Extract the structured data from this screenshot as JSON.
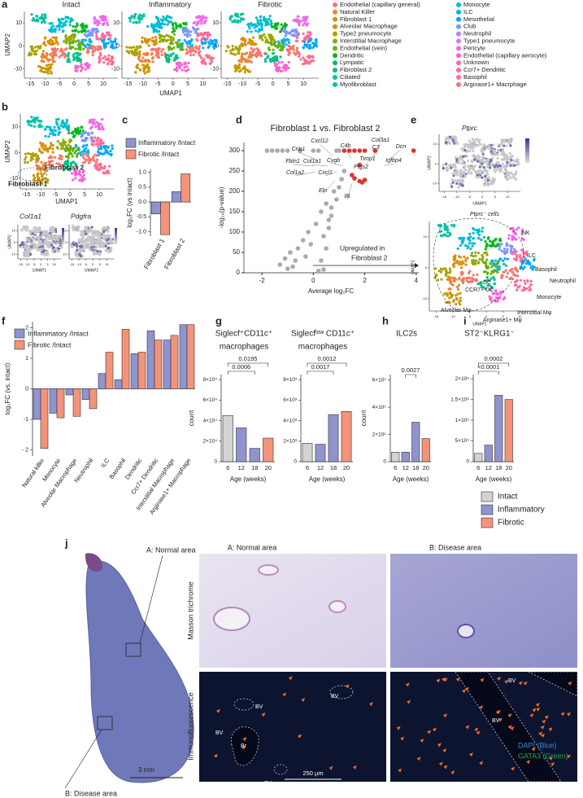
{
  "panel_labels": [
    "a",
    "b",
    "c",
    "d",
    "e",
    "f",
    "g",
    "h",
    "i",
    "j"
  ],
  "umap_a": {
    "titles": [
      "Intact",
      "Inflammatory",
      "Fibrotic"
    ],
    "xlabel": "UMAP1",
    "ylabel": "UMAP2",
    "xlim": [
      -17,
      15
    ],
    "ylim": [
      -14,
      15
    ],
    "xticks": [
      -15,
      -10,
      -5,
      0,
      5,
      10
    ],
    "yticks": [
      10,
      0,
      -10
    ],
    "legend": [
      {
        "name": "Endothelial (capillary general)",
        "color": "#F8766D"
      },
      {
        "name": "Natural Killer",
        "color": "#EC8239"
      },
      {
        "name": "Fibroblast 1",
        "color": "#DB8E00"
      },
      {
        "name": "Alveolar Macrophage",
        "color": "#C79800"
      },
      {
        "name": "Type2 pneumocyte",
        "color": "#AEA200"
      },
      {
        "name": "Interstitial Macrophage",
        "color": "#8FAA00"
      },
      {
        "name": "Endothelial (vein)",
        "color": "#64B200"
      },
      {
        "name": "Dendritic",
        "color": "#00B81B"
      },
      {
        "name": "Lympatic",
        "color": "#00BD5C"
      },
      {
        "name": "Fibroblast 2",
        "color": "#00C085"
      },
      {
        "name": "Ciliated",
        "color": "#00C1A7"
      },
      {
        "name": "Myofibroblast",
        "color": "#00BFC4"
      },
      {
        "name": "Monocyte",
        "color": "#00BADE"
      },
      {
        "name": "ILC",
        "color": "#00B2F3"
      },
      {
        "name": "Mesothelial",
        "color": "#00A6FF"
      },
      {
        "name": "Club",
        "color": "#7C96FF"
      },
      {
        "name": "Neutrophil",
        "color": "#B385FF"
      },
      {
        "name": "Type1 pneumocyte",
        "color": "#D874FD"
      },
      {
        "name": "Pericyte",
        "color": "#EF67EB"
      },
      {
        "name": "Endothelial (capillary aerocyte)",
        "color": "#FD61D3"
      },
      {
        "name": "Unknown",
        "color": "#FF62BC"
      },
      {
        "name": "Ccr7+ Dendritic",
        "color": "#FF6A9A"
      },
      {
        "name": "Basophil",
        "color": "#FF6C91"
      },
      {
        "name": "Arginase1+ Macrphage",
        "color": "#FC717F"
      }
    ]
  },
  "umap_b": {
    "xlabel": "UMAP1",
    "ylabel": "UMAP2",
    "xlim": [
      -17,
      15
    ],
    "ylim": [
      -14,
      15
    ],
    "xticks": [
      -15,
      -10,
      -5,
      0,
      5,
      10
    ],
    "yticks": [
      10,
      0,
      -10
    ],
    "labels": [
      "Fibroblast 2",
      "Fibroblast 1"
    ],
    "features": [
      "Col1a1",
      "Pdgfra"
    ]
  },
  "chart_c": {
    "type": "bar",
    "ylabel": "log₂FC (vs intact)",
    "categories": [
      "Fibroblast 1",
      "Fibroblast 2"
    ],
    "series": [
      {
        "name": "Inflammatory /Intact",
        "color": "#8f94cf",
        "values": [
          -0.4,
          0.35
        ]
      },
      {
        "name": "Fibrotic /Intact",
        "color": "#f4937a",
        "values": [
          -1.1,
          0.95
        ]
      }
    ],
    "ylim": [
      -1.15,
      1.1
    ],
    "yticks": [
      {
        "value": 1,
        "label": "1.0"
      },
      {
        "value": 0.5,
        "label": "0.5"
      },
      {
        "value": 0,
        "label": "0.0"
      },
      {
        "value": -0.5,
        "label": "-0.5"
      },
      {
        "value": -1,
        "label": "-1.0"
      }
    ]
  },
  "volcano_d": {
    "type": "scatter",
    "title": "Fibroblast 1 vs. Fibroblast 2",
    "xlabel": "Average log₂FC",
    "ylabel": "-log₁₀(p-value)",
    "xlim": [
      -2.7,
      4.1
    ],
    "ylim": [
      0,
      320
    ],
    "xticks": [
      -2,
      0,
      2,
      4
    ],
    "yticks": [
      0,
      50,
      100,
      150,
      200,
      250,
      300
    ],
    "x": [
      -1.8,
      -1.6,
      -1.4,
      -1.2,
      -1.0,
      -0.5,
      0.0,
      0.2,
      0.9,
      1.0,
      -1.3,
      -1.1,
      -0.9,
      -0.7,
      -0.6,
      -0.4,
      -0.3,
      -0.2,
      -0.1,
      0.1,
      0.3,
      0.4,
      0.5,
      0.6,
      0.7,
      0.8,
      0.9,
      1.0,
      1.1,
      1.2,
      0.5,
      0.6,
      0.7,
      0.3,
      -0.8,
      -1.0,
      0.2,
      0.4
    ],
    "y": [
      300,
      300,
      300,
      300,
      300,
      300,
      300,
      300,
      300,
      300,
      20,
      35,
      50,
      30,
      60,
      80,
      40,
      100,
      70,
      120,
      150,
      90,
      170,
      130,
      160,
      200,
      180,
      210,
      230,
      250,
      60,
      110,
      140,
      30,
      15,
      10,
      5,
      8
    ],
    "color": "#aaaaaa",
    "highlight": {
      "x": [
        1.2,
        1.4,
        1.6,
        1.8,
        2.0,
        2.4,
        3.9,
        1.8,
        1.5,
        1.6,
        1.8,
        2.0,
        1.9
      ],
      "y": [
        300,
        300,
        300,
        300,
        300,
        300,
        300,
        265,
        240,
        232,
        225,
        228,
        222
      ],
      "color": "#e8302a"
    },
    "genes": [
      "Cxcl12",
      "C4b",
      "Col3a1",
      "C3",
      "Dcn",
      "Crip1",
      "Cygb",
      "Timp1",
      "Igfbp4",
      "Fbln1",
      "Col1a1",
      "Ptgs2",
      "Col1a2",
      "Cxcl1",
      "Eln",
      "Il6"
    ],
    "annotation": [
      "Upregulated in",
      "Fibroblast 2"
    ]
  },
  "umap_e": {
    "feature": "Ptprc",
    "subtitle": "Ptprc⁻ cells",
    "xlabel": "UMAP1",
    "ylabel": "UMAP2",
    "xlim": [
      -17,
      15
    ],
    "ylim": [
      -14,
      15
    ],
    "xticks": [
      -15,
      -10,
      -5,
      0,
      5,
      10
    ],
    "yticks": [
      10,
      0,
      -10
    ],
    "labels": [
      "NK",
      "ILC",
      "Basophil",
      "Neutrophil",
      "DC",
      "CCR7+ DC",
      "Monocyte",
      "Alveolar Mφ",
      "Interstitial Mφ",
      "Arginase1+ Mφ"
    ]
  },
  "chart_f": {
    "type": "bar",
    "ylabel": "log₂FC (vs. intact)",
    "categories": [
      "Natural killer",
      "Monocyte",
      "Alveolar Macrophage",
      "Neutrophil",
      "ILC",
      "Basophil",
      "Dendritic",
      "Ccr7+ Dendritic",
      "Interstitial Macrophage",
      "Arginase1+ Macrophage"
    ],
    "series": [
      {
        "name": "Inflammatory /Intact",
        "color": "#8f94cf",
        "values": [
          -1.0,
          -0.8,
          -0.2,
          -0.35,
          0.5,
          0.3,
          1.15,
          1.9,
          1.6,
          2.1
        ]
      },
      {
        "name": "Fibrotic /Intact",
        "color": "#f4937a",
        "values": [
          -1.95,
          -0.95,
          -0.9,
          -0.65,
          1.2,
          1.95,
          1.2,
          1.6,
          1.75,
          2.1
        ]
      }
    ],
    "ylim": [
      -2.2,
      2.2
    ],
    "yticks": [
      2,
      1,
      0,
      -1,
      {
        "value": -2,
        "label": "- 2"
      }
    ]
  },
  "chart_g1": {
    "type": "bar",
    "title": [
      "Siglecf⁺CD11c⁺",
      "macrophages"
    ],
    "ylabel": "count",
    "xlabel": "Age (weeks)",
    "categories": [
      "6",
      "12",
      "18",
      "20"
    ],
    "values": [
      45000,
      33000,
      13000,
      23000
    ],
    "colors": [
      "#d3d3d3",
      "#8f94cf",
      "#8f94cf",
      "#f4937a"
    ],
    "ylim": [
      0,
      85000
    ],
    "yticks": [
      0,
      {
        "value": 20000,
        "label": "2×10⁴"
      },
      {
        "value": 40000,
        "label": "4×10⁴"
      },
      {
        "value": 60000,
        "label": "6×10⁴"
      },
      {
        "value": 80000,
        "label": "8×10⁴"
      }
    ],
    "comparisons": [
      {
        "groups": [
          "6",
          "18"
        ],
        "label": "0.0006"
      },
      {
        "groups": [
          "6",
          "20"
        ],
        "label": "0.0195"
      }
    ]
  },
  "chart_g2": {
    "type": "bar",
    "title": [
      "Siglecfˡᵒʷ CD11c⁺",
      "macrophages"
    ],
    "xlabel": "Age (weeks)",
    "categories": [
      "6",
      "12",
      "18",
      "20"
    ],
    "values": [
      1800,
      1700,
      4600,
      4900
    ],
    "colors": [
      "#d3d3d3",
      "#8f94cf",
      "#8f94cf",
      "#f4937a"
    ],
    "ylim": [
      0,
      8500
    ],
    "yticks": [
      0,
      {
        "value": 2000,
        "label": "2×10³"
      },
      {
        "value": 4000,
        "label": "4×10³"
      },
      {
        "value": 6000,
        "label": "6×10³"
      },
      {
        "value": 8000,
        "label": "8×10³"
      }
    ],
    "comparisons": [
      {
        "groups": [
          "6",
          "18"
        ],
        "label": "0.0017"
      },
      {
        "groups": [
          "6",
          "20"
        ],
        "label": "0.0012"
      }
    ]
  },
  "chart_h": {
    "type": "bar",
    "title": [
      "ILC2s"
    ],
    "ylabel": "count",
    "xlabel": "Age (weeks)",
    "categories": [
      "6",
      "12",
      "18",
      "20"
    ],
    "values": [
      70000,
      70000,
      290000,
      170000
    ],
    "colors": [
      "#d3d3d3",
      "#8f94cf",
      "#8f94cf",
      "#f4937a"
    ],
    "ylim": [
      0,
      640000
    ],
    "yticks": [
      0,
      {
        "value": 200000,
        "label": "2×10⁵"
      },
      {
        "value": 400000,
        "label": "4×10⁵"
      },
      {
        "value": 600000,
        "label": "6×10⁵"
      }
    ],
    "comparisons": [
      {
        "groups": [
          "12",
          "18"
        ],
        "label": "0.0027"
      }
    ]
  },
  "chart_i": {
    "type": "bar",
    "title": [
      "ST2⁻KLRG1⁻"
    ],
    "xlabel": "Age (weeks)",
    "categories": [
      "6",
      "12",
      "18",
      "20"
    ],
    "values": [
      20000,
      40000,
      160000,
      150000
    ],
    "colors": [
      "#d3d3d3",
      "#8f94cf",
      "#8f94cf",
      "#f4937a"
    ],
    "ylim": [
      0,
      210000
    ],
    "yticks": [
      0,
      {
        "value": 50000,
        "label": "5×10⁴"
      },
      {
        "value": 100000,
        "label": "1×10⁵"
      },
      {
        "value": 150000,
        "label": "1.5×10⁵"
      },
      {
        "value": 200000,
        "label": "2×10⁵"
      }
    ],
    "comparisons": [
      {
        "groups": [
          "6",
          "18"
        ],
        "label": "<0.0001"
      },
      {
        "groups": [
          "6",
          "20"
        ],
        "label": "0.0002"
      }
    ]
  },
  "group_legend": [
    {
      "name": "Intact",
      "color": "#d3d3d3"
    },
    {
      "name": "Inflammatory",
      "color": "#8f94cf"
    },
    {
      "name": "Fibrotic",
      "color": "#f4937a"
    }
  ],
  "panel_j": {
    "overview_labels": [
      "A: Normal area",
      "B: Disease area"
    ],
    "scale_overview": "3 mm",
    "column_titles": [
      "A: Normal area",
      "B: Disease area"
    ],
    "row_titles": [
      "Masson trichrome",
      "Immunofluorescence"
    ],
    "vessel_labels": [
      "BV",
      "Br"
    ],
    "scale_if": "250 µm",
    "stains": [
      {
        "name": "DAPI (Blue)",
        "color": "#2b8fd6"
      },
      {
        "name": "GATA3 (Green)",
        "color": "#2ea043"
      }
    ]
  }
}
